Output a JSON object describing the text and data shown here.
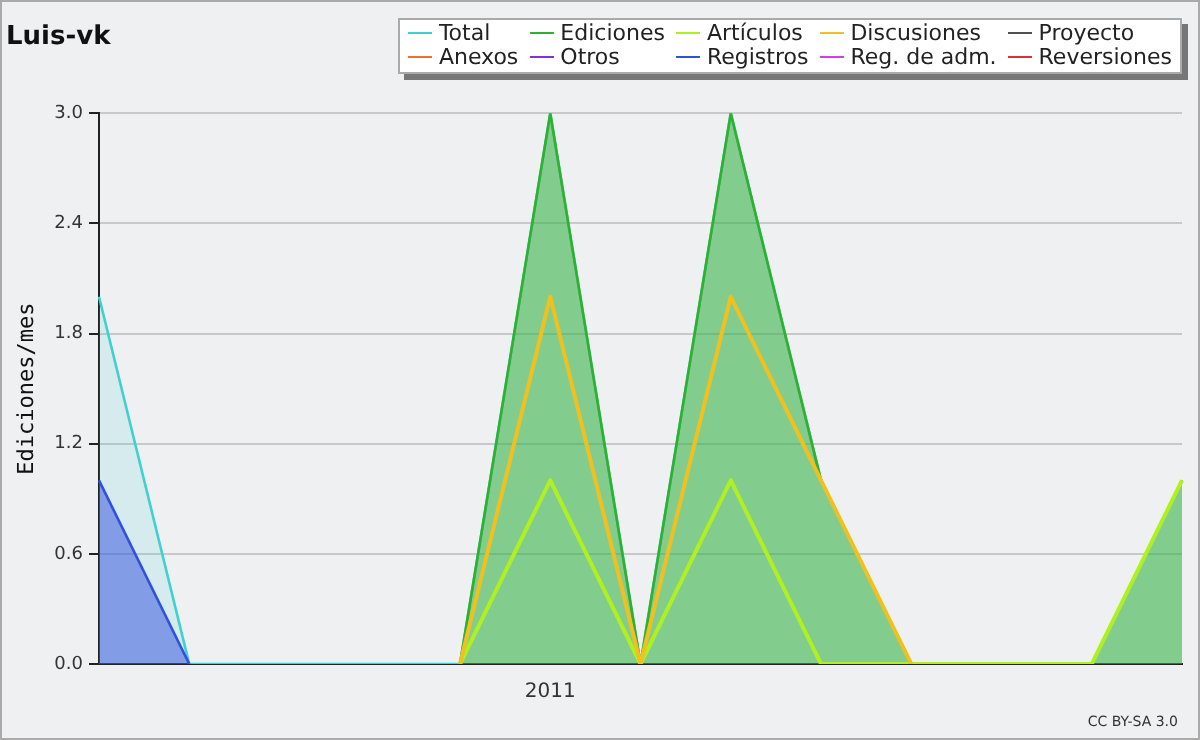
{
  "chart_data": {
    "type": "line",
    "title": "Luis-vk",
    "ylabel": "Ediciones/mes",
    "categories": [
      null,
      null,
      null,
      null,
      null,
      "2011",
      null,
      null,
      null,
      null,
      null,
      null,
      null
    ],
    "series": [
      {
        "name": "Total",
        "color": "#40d0d0",
        "type": "area",
        "values": [
          2,
          0,
          0,
          0,
          0,
          3,
          0,
          3,
          1,
          0,
          0,
          0,
          1
        ]
      },
      {
        "name": "Ediciones",
        "color": "#30b030",
        "type": "area",
        "values": [
          null,
          null,
          null,
          null,
          0,
          3,
          0,
          3,
          1,
          0,
          0,
          0,
          1
        ]
      },
      {
        "name": "Artículos",
        "color": "#b0f020",
        "values": [
          null,
          null,
          null,
          null,
          0,
          1,
          0,
          1,
          0,
          0,
          0,
          0,
          1
        ]
      },
      {
        "name": "Discusiones",
        "color": "#f0c020",
        "values": [
          null,
          null,
          null,
          null,
          0,
          2,
          0,
          2,
          1,
          0,
          null,
          null,
          null
        ]
      },
      {
        "name": "Proyecto",
        "color": "#505050",
        "values": [
          null,
          null,
          null,
          null,
          null,
          null,
          null,
          null,
          null,
          null,
          null,
          null,
          null
        ]
      },
      {
        "name": "Anexos",
        "color": "#f07030",
        "values": [
          null,
          null,
          null,
          null,
          null,
          null,
          null,
          null,
          null,
          null,
          null,
          null,
          null
        ]
      },
      {
        "name": "Otros",
        "color": "#8030e0",
        "values": [
          null,
          null,
          null,
          null,
          null,
          null,
          null,
          null,
          null,
          null,
          null,
          null,
          null
        ]
      },
      {
        "name": "Registros",
        "color": "#3050e0",
        "type": "area",
        "values": [
          1,
          0,
          null,
          null,
          null,
          null,
          null,
          null,
          null,
          null,
          null,
          null,
          null
        ]
      },
      {
        "name": "Reg. de adm.",
        "color": "#d040e0",
        "values": [
          null,
          null,
          null,
          null,
          null,
          null,
          null,
          null,
          null,
          null,
          null,
          null,
          null
        ]
      },
      {
        "name": "Reversiones",
        "color": "#e03030",
        "values": [
          null,
          null,
          null,
          null,
          null,
          null,
          null,
          null,
          null,
          null,
          null,
          null,
          null
        ]
      }
    ],
    "ylim": [
      0,
      3
    ],
    "yticks": [
      {
        "value": 0,
        "label": "0.0"
      },
      {
        "value": 0.6,
        "label": "0.6"
      },
      {
        "value": 1.2,
        "label": "1.2"
      },
      {
        "value": 1.8,
        "label": "1.8"
      },
      {
        "value": 2.4,
        "label": "2.4"
      },
      {
        "value": 3,
        "label": "3.0"
      }
    ],
    "grid": "y",
    "legend": "top right",
    "marker": "none",
    "line_style": "solid",
    "annotations": [
      "CC BY-SA 3.0"
    ]
  }
}
